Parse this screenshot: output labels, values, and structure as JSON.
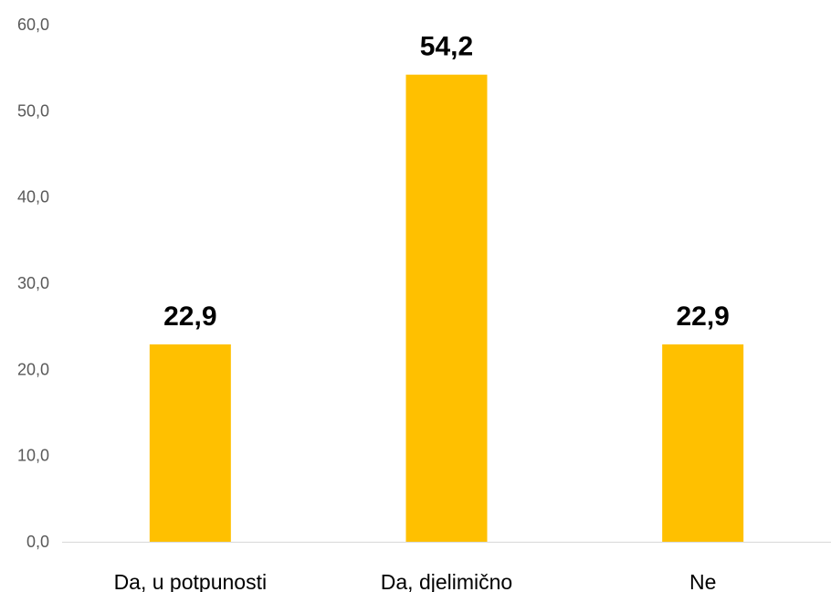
{
  "chart_data": {
    "type": "bar",
    "categories": [
      "Da, u potpunosti",
      "Da, djelimično",
      "Ne"
    ],
    "values": [
      22.9,
      54.2,
      22.9
    ],
    "value_labels": [
      "22,9",
      "54,2",
      "22,9"
    ],
    "ylim": [
      0,
      60
    ],
    "yticks": [
      0,
      10,
      20,
      30,
      40,
      50,
      60
    ],
    "ytick_labels": [
      "0,0",
      "10,0",
      "20,0",
      "30,0",
      "40,0",
      "50,0",
      "60,0"
    ],
    "grid": false,
    "legend": "none",
    "title": "",
    "xlabel": "",
    "ylabel": "",
    "colors": {
      "bar": "#FFC000",
      "axis": "#D9D9D9",
      "tick_text": "#595959"
    }
  }
}
